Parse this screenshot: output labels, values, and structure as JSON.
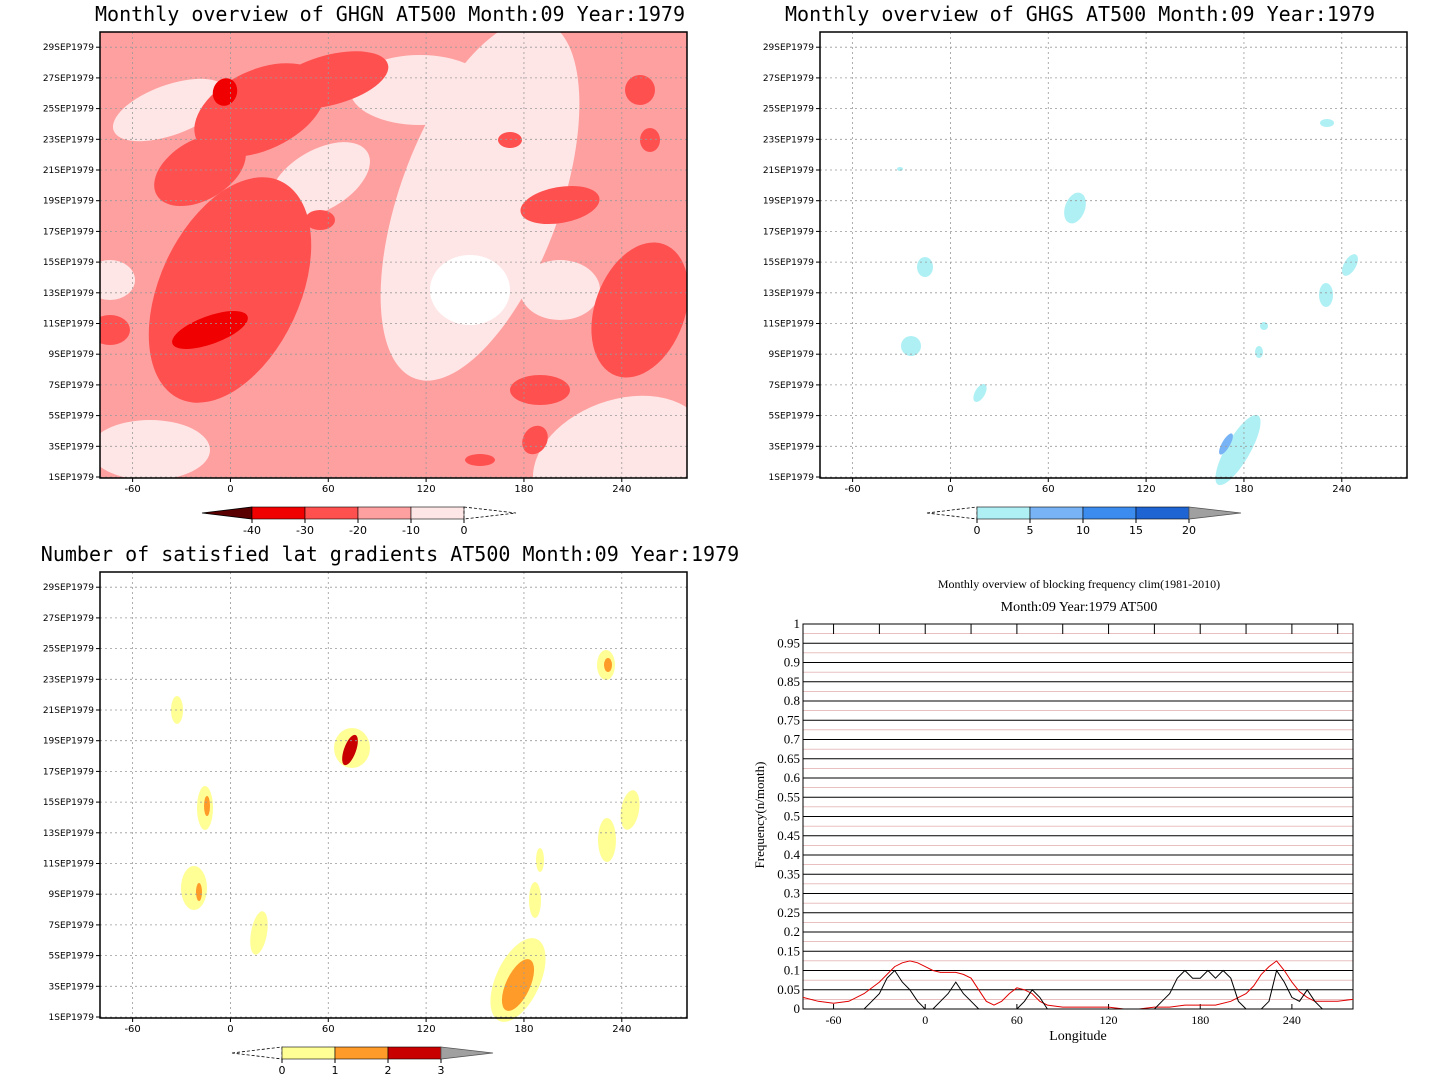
{
  "chart_data": [
    {
      "type": "heatmap",
      "title": "Monthly overview of GHGN AT500 Month:09 Year:1979",
      "x_ticks": [
        -60,
        0,
        60,
        120,
        180,
        240
      ],
      "xlim": [
        -80,
        280
      ],
      "y_ticks": [
        "1SEP1979",
        "3SEP1979",
        "5SEP1979",
        "7SEP1979",
        "9SEP1979",
        "11SEP1979",
        "13SEP1979",
        "15SEP1979",
        "17SEP1979",
        "19SEP1979",
        "21SEP1979",
        "23SEP1979",
        "25SEP1979",
        "27SEP1979",
        "29SEP1979"
      ],
      "colorbar": {
        "labels": [
          "-40",
          "-30",
          "-20",
          "-10",
          "0"
        ],
        "colors": [
          "#5a0000",
          "#f00000",
          "#ff5050",
          "#ffa0a0",
          "#ffe6e6"
        ]
      }
    },
    {
      "type": "heatmap",
      "title": "Monthly overview of GHGS AT500 Month:09 Year:1979",
      "x_ticks": [
        -60,
        0,
        60,
        120,
        180,
        240
      ],
      "xlim": [
        -80,
        280
      ],
      "y_ticks": [
        "1SEP1979",
        "3SEP1979",
        "5SEP1979",
        "7SEP1979",
        "9SEP1979",
        "11SEP1979",
        "13SEP1979",
        "15SEP1979",
        "17SEP1979",
        "19SEP1979",
        "21SEP1979",
        "23SEP1979",
        "25SEP1979",
        "27SEP1979",
        "29SEP1979"
      ],
      "colorbar": {
        "labels": [
          "0",
          "5",
          "10",
          "15",
          "20"
        ],
        "colors": [
          "#aff0f5",
          "#78b4f5",
          "#3c8cf0",
          "#1e64d2",
          "#a0a0a0"
        ]
      }
    },
    {
      "type": "heatmap",
      "title": "Number of satisfied lat gradients AT500 Month:09 Year:1979",
      "x_ticks": [
        -60,
        0,
        60,
        120,
        180,
        240
      ],
      "xlim": [
        -80,
        280
      ],
      "y_ticks": [
        "1SEP1979",
        "3SEP1979",
        "5SEP1979",
        "7SEP1979",
        "9SEP1979",
        "11SEP1979",
        "13SEP1979",
        "15SEP1979",
        "17SEP1979",
        "19SEP1979",
        "21SEP1979",
        "23SEP1979",
        "25SEP1979",
        "27SEP1979",
        "29SEP1979"
      ],
      "colorbar": {
        "labels": [
          "0",
          "1",
          "2",
          "3"
        ],
        "colors": [
          "#ffff96",
          "#ff9b28",
          "#c80000",
          "#a0a0a0"
        ]
      }
    },
    {
      "type": "line",
      "title": "Monthly overview of blocking frequency clim(1981-2010)",
      "subtitle": "Month:09 Year:1979  AT500",
      "xlabel": "Longitude",
      "ylabel": "Frequency(n/month)",
      "xlim": [
        -80,
        280
      ],
      "ylim": [
        0,
        1
      ],
      "x_ticks": [
        -60,
        0,
        60,
        120,
        180,
        240
      ],
      "y_ticks": [
        "0",
        "0.05",
        "0.1",
        "0.15",
        "0.2",
        "0.25",
        "0.3",
        "0.35",
        "0.4",
        "0.45",
        "0.5",
        "0.55",
        "0.6",
        "0.65",
        "0.7",
        "0.75",
        "0.8",
        "0.85",
        "0.9",
        "0.95",
        "1"
      ],
      "series": [
        {
          "color": "#e00000",
          "x": [
            -80,
            -70,
            -60,
            -50,
            -40,
            -30,
            -20,
            -15,
            -10,
            -5,
            0,
            5,
            10,
            20,
            25,
            30,
            35,
            40,
            45,
            50,
            55,
            60,
            65,
            70,
            75,
            80,
            90,
            100,
            110,
            120,
            130,
            140,
            150,
            160,
            170,
            180,
            190,
            200,
            210,
            215,
            220,
            225,
            230,
            235,
            240,
            245,
            250,
            255,
            260,
            270,
            280
          ],
          "y": [
            0.03,
            0.02,
            0.015,
            0.02,
            0.04,
            0.07,
            0.11,
            0.12,
            0.125,
            0.12,
            0.11,
            0.1,
            0.095,
            0.095,
            0.09,
            0.08,
            0.05,
            0.02,
            0.01,
            0.02,
            0.04,
            0.055,
            0.05,
            0.04,
            0.02,
            0.01,
            0.005,
            0.005,
            0.005,
            0.005,
            0.0,
            0.0,
            0.005,
            0.005,
            0.01,
            0.01,
            0.01,
            0.02,
            0.04,
            0.06,
            0.09,
            0.11,
            0.125,
            0.1,
            0.07,
            0.045,
            0.03,
            0.02,
            0.02,
            0.02,
            0.025
          ]
        },
        {
          "color": "#000000",
          "x": [
            -80,
            -40,
            -35,
            -30,
            -25,
            -20,
            -15,
            -10,
            -5,
            0,
            5,
            10,
            15,
            20,
            25,
            30,
            35,
            40,
            50,
            60,
            65,
            70,
            75,
            80,
            85,
            90,
            150,
            155,
            160,
            165,
            170,
            175,
            180,
            185,
            190,
            195,
            200,
            205,
            210,
            220,
            225,
            230,
            235,
            240,
            245,
            250,
            255,
            260,
            280
          ],
          "y": [
            0,
            0,
            0.02,
            0.04,
            0.08,
            0.1,
            0.07,
            0.05,
            0.02,
            0,
            0,
            0.02,
            0.04,
            0.07,
            0.04,
            0.02,
            0,
            0,
            0,
            0,
            0.02,
            0.05,
            0.03,
            0,
            0,
            0,
            0,
            0.02,
            0.04,
            0.08,
            0.1,
            0.08,
            0.08,
            0.1,
            0.08,
            0.1,
            0.08,
            0.02,
            0,
            0,
            0.02,
            0.1,
            0.07,
            0.03,
            0.02,
            0.05,
            0.02,
            0,
            0
          ]
        }
      ]
    }
  ]
}
